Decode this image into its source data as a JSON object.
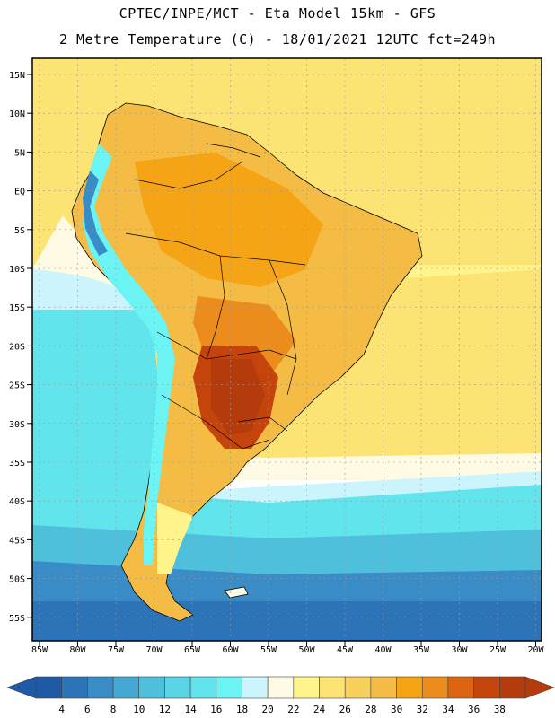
{
  "title": {
    "line1": "CPTEC/INPE/MCT -  Eta Model 15km - GFS",
    "line2": "2 Metre Temperature (C) - 18/01/2021 12UTC fct=249h"
  },
  "map": {
    "lat_labels": [
      "15N",
      "10N",
      "5N",
      "EQ",
      "5S",
      "10S",
      "15S",
      "20S",
      "25S",
      "30S",
      "35S",
      "40S",
      "45S",
      "50S",
      "55S"
    ],
    "lon_labels": [
      "85W",
      "80W",
      "75W",
      "70W",
      "65W",
      "60W",
      "55W",
      "50W",
      "45W",
      "40W",
      "35W",
      "30W",
      "25W",
      "20W"
    ]
  },
  "legend": {
    "labels": [
      "4",
      "6",
      "8",
      "10",
      "12",
      "14",
      "16",
      "18",
      "20",
      "22",
      "24",
      "26",
      "28",
      "30",
      "32",
      "34",
      "36",
      "38"
    ],
    "colors": [
      "#1f5aa6",
      "#2d73b8",
      "#3a8cc6",
      "#45a8d2",
      "#4fc0dc",
      "#58d4e4",
      "#62e4ec",
      "#6cf4f4",
      "#ccf4fc",
      "#fffae4",
      "#fff48c",
      "#fce474",
      "#f8d05c",
      "#f4bc44",
      "#f4a414",
      "#ec8c1c",
      "#dc6410",
      "#c4440c",
      "#b43c0c"
    ],
    "low_arrow_color": "#1f5aa6",
    "high_arrow_color": "#b43c0c"
  }
}
